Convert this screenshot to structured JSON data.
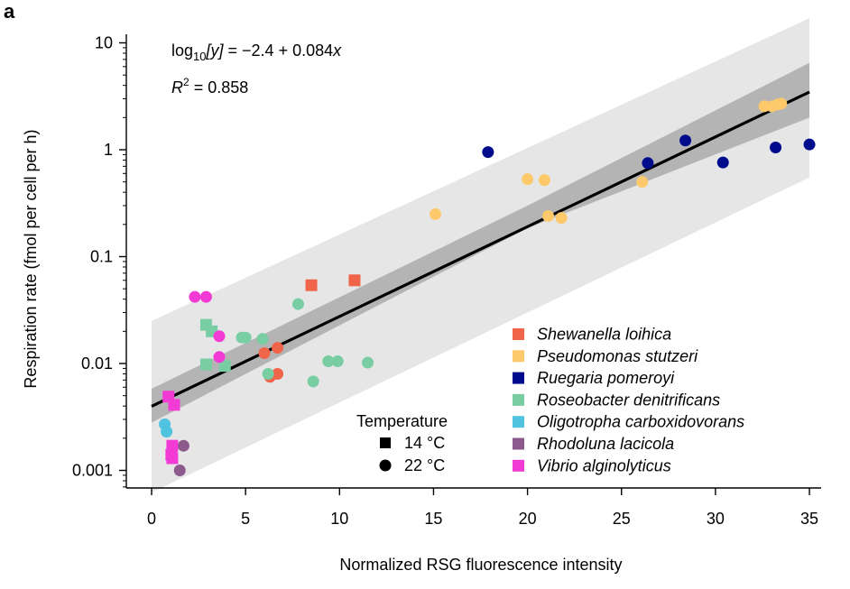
{
  "panel_label": "a",
  "equation": {
    "prefix": "log",
    "sub": "10",
    "var": "[y]",
    "rest": " = −2.4 + 0.084",
    "x": "x"
  },
  "r2": {
    "r": "R",
    "sup": "2",
    "value": " = 0.858"
  },
  "temperature_legend": {
    "title": "Temperature",
    "items": [
      {
        "shape": "square",
        "label": "14 °C"
      },
      {
        "shape": "circle",
        "label": "22 °C"
      }
    ]
  },
  "chart_data": {
    "type": "scatter",
    "title": "",
    "xlabel": "Normalized RSG fluorescence intensity",
    "ylabel": "Respiration rate (fmol per cell per h)",
    "xlim": [
      -1,
      36
    ],
    "ylim": [
      0.0006,
      14
    ],
    "yscale": "log",
    "xticks": [
      0,
      5,
      10,
      15,
      20,
      25,
      30,
      35
    ],
    "yticks": [
      0.001,
      0.01,
      0.1,
      1,
      10
    ],
    "ytick_labels": [
      "0.001",
      "0.01",
      "0.1",
      "1",
      "10"
    ],
    "regression": {
      "intercept": -2.4,
      "slope": 0.084,
      "x_range": [
        0,
        35
      ]
    },
    "confidence_band": {
      "upper": [
        [
          0,
          0.0058
        ],
        [
          20,
          0.3
        ],
        [
          35,
          6.5
        ]
      ],
      "lower": [
        [
          0,
          0.0028
        ],
        [
          20,
          0.185
        ],
        [
          35,
          2.0
        ]
      ]
    },
    "prediction_band": {
      "upper": [
        [
          0,
          0.025
        ],
        [
          35,
          17
        ]
      ],
      "lower": [
        [
          0,
          0.00062
        ],
        [
          35,
          0.55
        ]
      ]
    },
    "series": [
      {
        "name": "Shewanella loihica",
        "color": "#f0644a",
        "points": [
          {
            "x": 8.5,
            "y": 0.054,
            "temp": "14"
          },
          {
            "x": 10.8,
            "y": 0.06,
            "temp": "14"
          },
          {
            "x": 6.0,
            "y": 0.0125,
            "temp": "22"
          },
          {
            "x": 6.7,
            "y": 0.014,
            "temp": "22"
          },
          {
            "x": 6.3,
            "y": 0.0075,
            "temp": "22"
          },
          {
            "x": 6.7,
            "y": 0.008,
            "temp": "22"
          }
        ]
      },
      {
        "name": "Pseudomonas stutzeri",
        "color": "#fdc96b",
        "points": [
          {
            "x": 15.1,
            "y": 0.25,
            "temp": "22"
          },
          {
            "x": 20.0,
            "y": 0.53,
            "temp": "22"
          },
          {
            "x": 20.9,
            "y": 0.52,
            "temp": "22"
          },
          {
            "x": 21.1,
            "y": 0.24,
            "temp": "22"
          },
          {
            "x": 21.8,
            "y": 0.23,
            "temp": "22"
          },
          {
            "x": 26.1,
            "y": 0.5,
            "temp": "22"
          },
          {
            "x": 32.6,
            "y": 2.55,
            "temp": "22"
          },
          {
            "x": 33.0,
            "y": 2.55,
            "temp": "22"
          },
          {
            "x": 33.3,
            "y": 2.65,
            "temp": "22"
          },
          {
            "x": 33.5,
            "y": 2.7,
            "temp": "22"
          }
        ]
      },
      {
        "name": "Ruegaria pomeroyi",
        "color": "#000c8c",
        "points": [
          {
            "x": 17.9,
            "y": 0.95,
            "temp": "22"
          },
          {
            "x": 26.4,
            "y": 0.75,
            "temp": "22"
          },
          {
            "x": 28.4,
            "y": 1.22,
            "temp": "22"
          },
          {
            "x": 30.4,
            "y": 0.76,
            "temp": "22"
          },
          {
            "x": 33.2,
            "y": 1.05,
            "temp": "22"
          },
          {
            "x": 35.0,
            "y": 1.12,
            "temp": "22"
          }
        ]
      },
      {
        "name": "Roseobacter denitrificans",
        "color": "#79cda3",
        "points": [
          {
            "x": 2.9,
            "y": 0.023,
            "temp": "14"
          },
          {
            "x": 3.2,
            "y": 0.02,
            "temp": "14"
          },
          {
            "x": 2.9,
            "y": 0.0098,
            "temp": "14"
          },
          {
            "x": 3.9,
            "y": 0.0095,
            "temp": "14"
          },
          {
            "x": 4.8,
            "y": 0.0175,
            "temp": "22"
          },
          {
            "x": 5.0,
            "y": 0.0175,
            "temp": "22"
          },
          {
            "x": 5.9,
            "y": 0.017,
            "temp": "22"
          },
          {
            "x": 6.2,
            "y": 0.008,
            "temp": "22"
          },
          {
            "x": 7.8,
            "y": 0.036,
            "temp": "22"
          },
          {
            "x": 8.6,
            "y": 0.0068,
            "temp": "22"
          },
          {
            "x": 9.4,
            "y": 0.0105,
            "temp": "22"
          },
          {
            "x": 9.9,
            "y": 0.0105,
            "temp": "22"
          },
          {
            "x": 11.5,
            "y": 0.0102,
            "temp": "22"
          }
        ]
      },
      {
        "name": "Oligotropha carboxidovorans",
        "color": "#4fc3e0",
        "points": [
          {
            "x": 0.7,
            "y": 0.0027,
            "temp": "22"
          },
          {
            "x": 0.8,
            "y": 0.0023,
            "temp": "22"
          }
        ]
      },
      {
        "name": "Rhodoluna lacicola",
        "color": "#8c5a8c",
        "points": [
          {
            "x": 1.7,
            "y": 0.0017,
            "temp": "22"
          },
          {
            "x": 1.5,
            "y": 0.001,
            "temp": "22"
          }
        ]
      },
      {
        "name": "Vibrio alginolyticus",
        "color": "#f23ad4",
        "points": [
          {
            "x": 0.9,
            "y": 0.0049,
            "temp": "14"
          },
          {
            "x": 1.2,
            "y": 0.0041,
            "temp": "14"
          },
          {
            "x": 1.1,
            "y": 0.0017,
            "temp": "14"
          },
          {
            "x": 1.05,
            "y": 0.0014,
            "temp": "14"
          },
          {
            "x": 1.1,
            "y": 0.0013,
            "temp": "14"
          },
          {
            "x": 2.3,
            "y": 0.042,
            "temp": "22"
          },
          {
            "x": 2.9,
            "y": 0.042,
            "temp": "22"
          },
          {
            "x": 3.6,
            "y": 0.018,
            "temp": "22"
          },
          {
            "x": 3.6,
            "y": 0.0115,
            "temp": "22"
          }
        ]
      }
    ]
  }
}
